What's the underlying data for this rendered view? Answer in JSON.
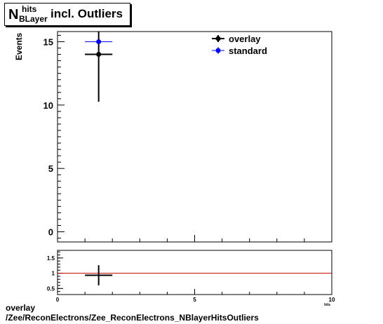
{
  "title": {
    "main": "N",
    "superscript": "hits",
    "subscript": "BLayer",
    "suffix": "incl. Outliers"
  },
  "footer": {
    "line1": "overlay",
    "line2": "/Zee/ReconElectrons/Zee_ReconElectrons_NBlayerHitsOutliers"
  },
  "colors": {
    "overlay": "#000000",
    "standard": "#0000ff",
    "ratio_line": "#cc0000"
  },
  "chart_data": [
    {
      "type": "scatter",
      "ylabel": "Events",
      "xlim": [
        0,
        10
      ],
      "ylim": [
        -0.8,
        15.8
      ],
      "yticks": [
        0,
        5,
        10,
        15
      ],
      "legend": {
        "position": "top-right",
        "entries": [
          "overlay",
          "standard"
        ]
      },
      "series": [
        {
          "name": "overlay",
          "x": [
            1.5
          ],
          "y": [
            14
          ],
          "xerr": [
            0.5
          ],
          "yerr": [
            3.74
          ]
        },
        {
          "name": "standard",
          "x": [
            1.5
          ],
          "y": [
            15
          ],
          "xerr": [
            0.5
          ],
          "yerr": [
            0.0
          ]
        }
      ]
    },
    {
      "type": "scatter",
      "xlim": [
        0,
        10
      ],
      "ylim": [
        0.3,
        1.75
      ],
      "yticks": [
        0.5,
        1,
        1.5
      ],
      "xticks": [
        0,
        5,
        10
      ],
      "xlabel_fragment": "hits",
      "reference_line": 1,
      "series": [
        {
          "name": "ratio",
          "x": [
            1.5
          ],
          "y": [
            0.933
          ],
          "xerr": [
            0.5
          ],
          "yerr": [
            0.33
          ]
        }
      ]
    }
  ]
}
